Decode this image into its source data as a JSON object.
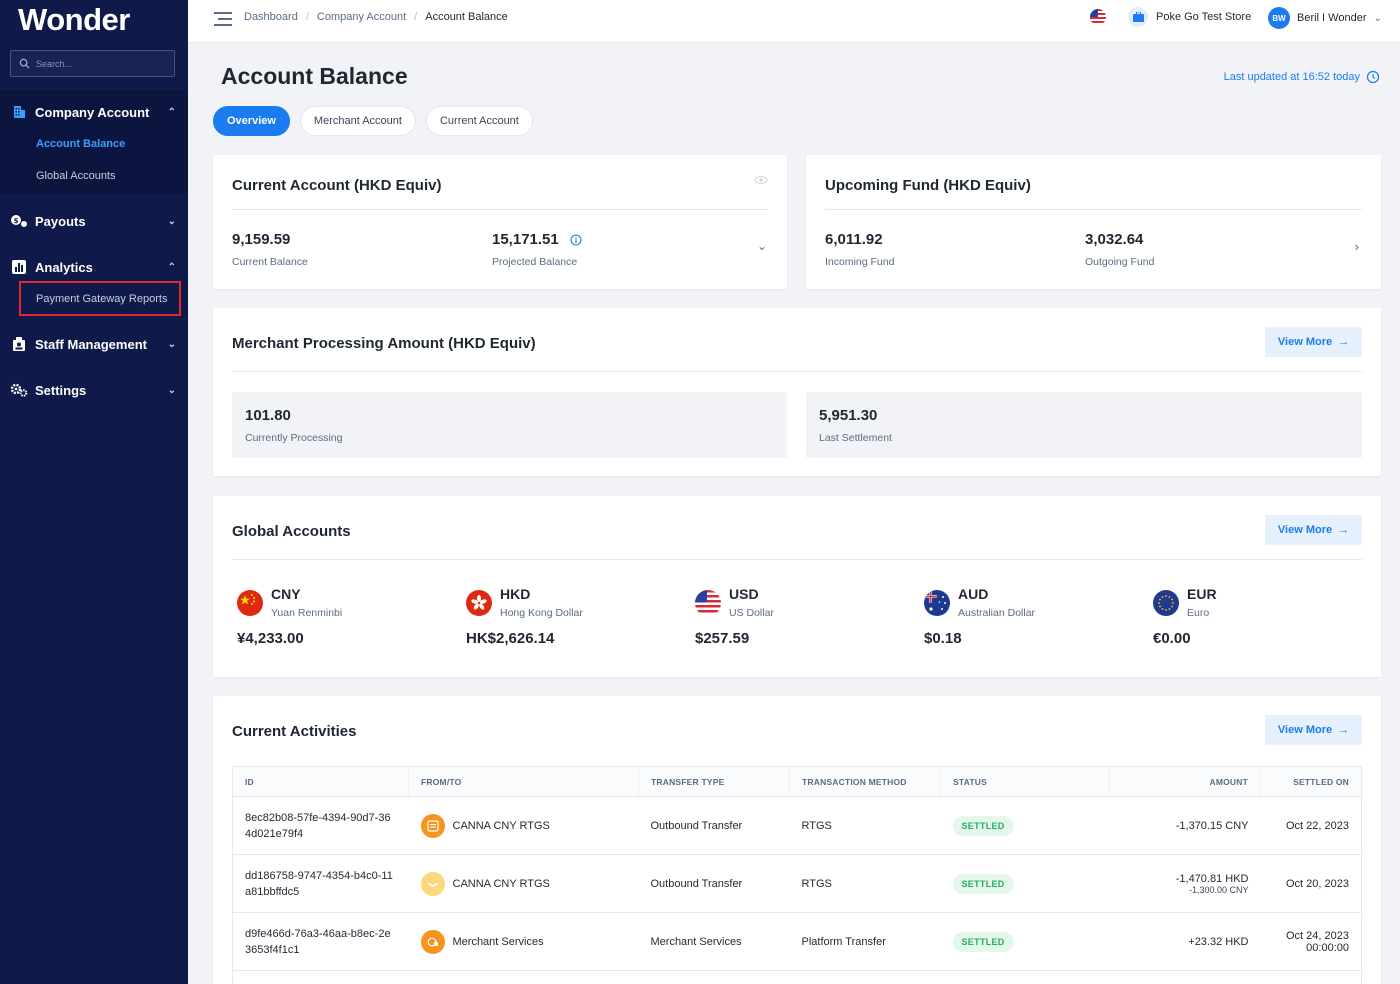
{
  "app": {
    "logo": "Wonder"
  },
  "search": {
    "placeholder": "Search..."
  },
  "sidebar": {
    "company_account": "Company Account",
    "account_balance": "Account Balance",
    "global_accounts": "Global Accounts",
    "payouts": "Payouts",
    "analytics": "Analytics",
    "payment_gateway_reports": "Payment Gateway Reports",
    "staff_management": "Staff Management",
    "settings": "Settings"
  },
  "breadcrumb": [
    "Dashboard",
    "Company Account",
    "Account Balance"
  ],
  "header": {
    "store_name": "Poke Go Test Store",
    "user_initials": "BW",
    "user_name": "Beril I Wonder"
  },
  "page": {
    "title": "Account Balance",
    "last_updated": "Last updated at 16:52 today"
  },
  "tabs": [
    "Overview",
    "Merchant Account",
    "Current Account"
  ],
  "current_account": {
    "title": "Current Account (HKD Equiv)",
    "current_balance": "9,159.59",
    "current_balance_label": "Current Balance",
    "projected_balance": "15,171.51",
    "projected_balance_label": "Projected Balance"
  },
  "upcoming_fund": {
    "title": "Upcoming Fund (HKD Equiv)",
    "incoming": "6,011.92",
    "incoming_label": "Incoming Fund",
    "outgoing": "3,032.64",
    "outgoing_label": "Outgoing Fund"
  },
  "merchant_processing": {
    "title": "Merchant Processing Amount (HKD Equiv)",
    "view_more": "View More",
    "processing": "101.80",
    "processing_label": "Currently Processing",
    "settlement": "5,951.30",
    "settlement_label": "Last Settlement"
  },
  "global_accounts": {
    "title": "Global Accounts",
    "view_more": "View More",
    "items": [
      {
        "code": "CNY",
        "name": "Yuan Renminbi",
        "amount": "¥4,233.00"
      },
      {
        "code": "HKD",
        "name": "Hong Kong Dollar",
        "amount": "HK$2,626.14"
      },
      {
        "code": "USD",
        "name": "US Dollar",
        "amount": "$257.59"
      },
      {
        "code": "AUD",
        "name": "Australian Dollar",
        "amount": "$0.18"
      },
      {
        "code": "EUR",
        "name": "Euro",
        "amount": "€0.00"
      }
    ]
  },
  "activities": {
    "title": "Current Activities",
    "view_more": "View More",
    "columns": [
      "ID",
      "FROM/TO",
      "TRANSFER TYPE",
      "TRANSACTION METHOD",
      "STATUS",
      "AMOUNT",
      "SETTLED ON"
    ],
    "rows": [
      {
        "id": "8ec82b08-57fe-4394-90d7-364d021e79f4",
        "from": "CANNA CNY RTGS",
        "type": "Outbound Transfer",
        "method": "RTGS",
        "status": "SETTLED",
        "amount": "-1,370.15 CNY",
        "amount_sub": "",
        "settled": "Oct 22, 2023",
        "settled_time": ""
      },
      {
        "id": "dd186758-9747-4354-b4c0-11a81bbffdc5",
        "from": "CANNA CNY RTGS",
        "type": "Outbound Transfer",
        "method": "RTGS",
        "status": "SETTLED",
        "amount": "-1,470.81 HKD",
        "amount_sub": "-1,300.00 CNY",
        "settled": "Oct 20, 2023",
        "settled_time": ""
      },
      {
        "id": "d9fe466d-76a3-46aa-b8ec-2e3653f4f1c1",
        "from": "Merchant Services",
        "type": "Merchant Services",
        "method": "Platform Transfer",
        "status": "SETTLED",
        "amount": "+23.32 HKD",
        "amount_sub": "",
        "settled": "Oct 24, 2023",
        "settled_time": "00:00:00"
      }
    ]
  },
  "colors": {
    "sidebar": "#101a4a",
    "accent": "#1a7cf0",
    "highlight": "#e12a2a",
    "settled": "#27ae60"
  }
}
